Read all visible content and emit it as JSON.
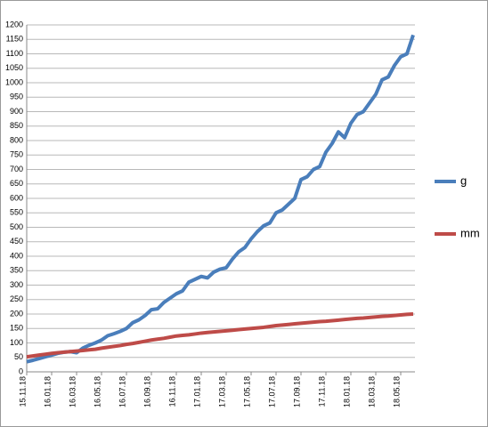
{
  "chart_data": {
    "type": "line",
    "categories": [
      "15.11.18",
      null,
      null,
      null,
      "16.01.18",
      null,
      null,
      null,
      "16.03.18",
      null,
      null,
      null,
      "16.05.18",
      null,
      null,
      null,
      "16.07.18",
      null,
      null,
      null,
      "16.09.18",
      null,
      null,
      null,
      "16.11.18",
      null,
      null,
      null,
      "17.01.18",
      null,
      null,
      null,
      "17.03.18",
      null,
      null,
      null,
      "17.05.18",
      null,
      null,
      null,
      "17.07.18",
      null,
      null,
      null,
      "17.09.18",
      null,
      null,
      null,
      "17.11.18",
      null,
      null,
      null,
      "18.01.18",
      null,
      null,
      null,
      "18.03.18",
      null,
      null,
      null,
      "18.05.18",
      null,
      null
    ],
    "series": [
      {
        "name": "g",
        "color": "#4a7ebb",
        "values": [
          35,
          40,
          46,
          52,
          58,
          64,
          68,
          70,
          66,
          82,
          92,
          100,
          110,
          125,
          132,
          140,
          150,
          170,
          180,
          195,
          215,
          218,
          240,
          255,
          270,
          280,
          310,
          320,
          330,
          325,
          345,
          355,
          360,
          390,
          415,
          430,
          460,
          485,
          505,
          515,
          550,
          560,
          580,
          600,
          665,
          675,
          700,
          710,
          760,
          790,
          830,
          810,
          860,
          890,
          900,
          930,
          960,
          1010,
          1020,
          1060,
          1090,
          1100,
          1165
        ]
      },
      {
        "name": "mm",
        "color": "#be4b48",
        "values": [
          52,
          55,
          58,
          61,
          64,
          66,
          68,
          70,
          72,
          74,
          76,
          78,
          82,
          85,
          88,
          91,
          95,
          98,
          102,
          106,
          110,
          113,
          116,
          120,
          124,
          126,
          128,
          131,
          134,
          136,
          138,
          140,
          142,
          144,
          146,
          148,
          150,
          152,
          154,
          157,
          160,
          162,
          164,
          166,
          168,
          170,
          172,
          174,
          175,
          177,
          179,
          181,
          183,
          185,
          186,
          188,
          190,
          192,
          193,
          195,
          197,
          199,
          200
        ]
      }
    ],
    "ylim": [
      0,
      1200
    ],
    "yticks": [
      0,
      50,
      100,
      150,
      200,
      250,
      300,
      350,
      400,
      450,
      500,
      550,
      600,
      650,
      700,
      750,
      800,
      850,
      900,
      950,
      1000,
      1050,
      1100,
      1150,
      1200
    ],
    "grid": true,
    "legend": "right"
  }
}
